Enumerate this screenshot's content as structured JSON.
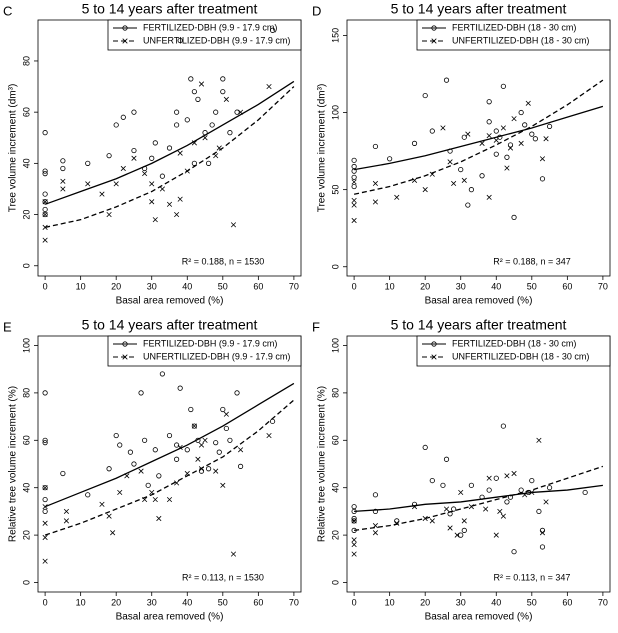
{
  "chart_data": [
    {
      "type": "scatter",
      "panel_label": "C",
      "title": "5 to 14 years after treatment",
      "x_label": "Basal area removed (%)",
      "y_label": "Tree volume increment (dm³)",
      "annotation": "R² = 0.188, n = 1530",
      "xlim": [
        -2,
        72
      ],
      "xticks": [
        0,
        10,
        20,
        30,
        40,
        50,
        60,
        70
      ],
      "ylim": [
        -4,
        96
      ],
      "yticks": [
        0,
        20,
        40,
        60,
        80
      ],
      "series": [
        {
          "name": "FERTILIZED-DBH (9.9 - 17.9 cm)",
          "marker": "circle",
          "line_style": "solid",
          "color": "#000000",
          "x": [
            0,
            0,
            0,
            0,
            0,
            0,
            0,
            5,
            5,
            12,
            18,
            20,
            22,
            25,
            25,
            28,
            30,
            31,
            33,
            35,
            37,
            37,
            38,
            40,
            41,
            42,
            43,
            45,
            46,
            47,
            48,
            50,
            50,
            52,
            54,
            64,
            42
          ],
          "values": [
            52,
            37,
            36,
            28,
            25,
            22,
            20,
            41,
            38,
            40,
            43,
            55,
            58,
            60,
            45,
            38,
            42,
            48,
            35,
            46,
            55,
            60,
            88,
            57,
            73,
            68,
            65,
            52,
            40,
            55,
            60,
            73,
            68,
            52,
            60,
            92,
            40
          ],
          "fit_x": [
            0,
            10,
            20,
            30,
            40,
            50,
            60,
            70
          ],
          "fit_values": [
            24,
            29,
            34,
            40,
            47,
            55,
            63,
            72
          ]
        },
        {
          "name": "UNFERTILIZED-DBH (9.9 - 17.9 cm)",
          "marker": "x",
          "line_style": "dashed",
          "color": "#000000",
          "x": [
            0,
            0,
            0,
            0,
            5,
            5,
            12,
            16,
            18,
            20,
            22,
            25,
            28,
            30,
            30,
            31,
            33,
            35,
            37,
            38,
            38,
            40,
            42,
            44,
            45,
            48,
            49,
            51,
            53,
            55,
            63
          ],
          "values": [
            25,
            20,
            15,
            10,
            33,
            30,
            32,
            28,
            20,
            32,
            38,
            42,
            36,
            32,
            25,
            18,
            30,
            24,
            20,
            26,
            44,
            37,
            48,
            71,
            50,
            43,
            46,
            65,
            16,
            60,
            70
          ],
          "fit_x": [
            0,
            10,
            20,
            30,
            40,
            50,
            60,
            70
          ],
          "fit_values": [
            15,
            18,
            23,
            29,
            37,
            46,
            57,
            70
          ]
        }
      ]
    },
    {
      "type": "scatter",
      "panel_label": "D",
      "title": "5 to 14 years after treatment",
      "x_label": "Basal area removed (%)",
      "y_label": "Tree volume increment (dm³)",
      "annotation": "R² = 0.188, n = 347",
      "xlim": [
        -2,
        72
      ],
      "xticks": [
        0,
        10,
        20,
        30,
        40,
        50,
        60,
        70
      ],
      "ylim": [
        -6,
        160
      ],
      "yticks": [
        0,
        50,
        100,
        150
      ],
      "series": [
        {
          "name": "FERTILIZED-DBH (18 - 30 cm)",
          "marker": "circle",
          "line_style": "solid",
          "color": "#000000",
          "x": [
            0,
            0,
            0,
            0,
            0,
            6,
            10,
            17,
            20,
            22,
            26,
            27,
            30,
            31,
            32,
            33,
            36,
            38,
            38,
            40,
            41,
            42,
            43,
            44,
            45,
            47,
            48,
            50,
            51,
            53,
            55,
            40
          ],
          "values": [
            69,
            65,
            62,
            58,
            52,
            78,
            70,
            80,
            111,
            88,
            121,
            75,
            63,
            84,
            40,
            50,
            59,
            107,
            94,
            88,
            84,
            117,
            71,
            79,
            32,
            100,
            92,
            86,
            83,
            57,
            91,
            73
          ],
          "fit_x": [
            0,
            10,
            20,
            30,
            40,
            50,
            60,
            70
          ],
          "fit_values": [
            63,
            67,
            72,
            78,
            84,
            90,
            97,
            104
          ]
        },
        {
          "name": "UNFERTILIZED-DBH (18 - 30 cm)",
          "marker": "x",
          "line_style": "dashed",
          "color": "#000000",
          "x": [
            0,
            0,
            0,
            0,
            6,
            6,
            12,
            17,
            20,
            22,
            25,
            27,
            28,
            31,
            32,
            36,
            38,
            38,
            40,
            42,
            43,
            44,
            45,
            47,
            49,
            53,
            54
          ],
          "values": [
            55,
            43,
            40,
            30,
            54,
            42,
            45,
            56,
            50,
            60,
            90,
            68,
            54,
            56,
            86,
            80,
            85,
            45,
            82,
            90,
            64,
            77,
            96,
            80,
            106,
            70,
            83
          ],
          "fit_x": [
            0,
            10,
            20,
            30,
            40,
            50,
            60,
            70
          ],
          "fit_values": [
            47,
            52,
            59,
            68,
            79,
            91,
            105,
            121
          ]
        }
      ]
    },
    {
      "type": "scatter",
      "panel_label": "E",
      "title": "5 to 14 years after treatment",
      "x_label": "Basal area removed (%)",
      "y_label": "Relative tree volume increment (%)",
      "annotation": "R² = 0.113, n = 1530",
      "xlim": [
        -2,
        72
      ],
      "xticks": [
        0,
        10,
        20,
        30,
        40,
        50,
        60,
        70
      ],
      "ylim": [
        -4,
        104
      ],
      "yticks": [
        0,
        20,
        40,
        60,
        80,
        100
      ],
      "series": [
        {
          "name": "FERTILIZED-DBH (9.9 - 17.9 cm)",
          "marker": "circle",
          "line_style": "solid",
          "color": "#000000",
          "x": [
            0,
            0,
            0,
            0,
            0,
            0,
            5,
            12,
            18,
            20,
            21,
            24,
            25,
            27,
            28,
            29,
            31,
            32,
            33,
            35,
            37,
            37,
            38,
            40,
            41,
            42,
            43,
            44,
            46,
            48,
            49,
            50,
            51,
            54,
            55,
            64,
            52
          ],
          "values": [
            80,
            60,
            59,
            40,
            35,
            30,
            46,
            37,
            48,
            62,
            58,
            55,
            50,
            80,
            60,
            41,
            56,
            45,
            88,
            62,
            52,
            58,
            82,
            56,
            73,
            66,
            60,
            47,
            48,
            59,
            55,
            73,
            65,
            80,
            49,
            68,
            60
          ],
          "fit_x": [
            0,
            10,
            20,
            30,
            40,
            50,
            60,
            70
          ],
          "fit_values": [
            32,
            38,
            44,
            51,
            58,
            66,
            75,
            84
          ]
        },
        {
          "name": "UNFERTILIZED-DBH (9.9 - 17.9 cm)",
          "marker": "x",
          "line_style": "dashed",
          "color": "#000000",
          "x": [
            0,
            0,
            0,
            0,
            0,
            6,
            6,
            16,
            18,
            19,
            21,
            23,
            27,
            28,
            30,
            31,
            32,
            35,
            37,
            38,
            40,
            42,
            43,
            44,
            45,
            48,
            50,
            51,
            53,
            55,
            63,
            44
          ],
          "values": [
            40,
            32,
            25,
            19,
            9,
            30,
            26,
            33,
            28,
            21,
            38,
            45,
            47,
            35,
            38,
            35,
            27,
            35,
            42,
            57,
            46,
            66,
            52,
            58,
            60,
            47,
            41,
            71,
            12,
            56,
            62,
            48
          ],
          "fit_x": [
            0,
            10,
            20,
            30,
            40,
            50,
            60,
            70
          ],
          "fit_values": [
            20,
            25,
            31,
            37,
            45,
            53,
            64,
            77
          ]
        }
      ]
    },
    {
      "type": "scatter",
      "panel_label": "F",
      "title": "5 to 14 years after treatment",
      "x_label": "Basal area removed (%)",
      "y_label": "Relative tree volume increment (%)",
      "annotation": "R² = 0.113, n = 347",
      "xlim": [
        -2,
        72
      ],
      "xticks": [
        0,
        10,
        20,
        30,
        40,
        50,
        60,
        70
      ],
      "ylim": [
        -4,
        104
      ],
      "yticks": [
        0,
        20,
        40,
        60,
        80,
        100
      ],
      "series": [
        {
          "name": "FERTILIZED-DBH (18 - 30 cm)",
          "marker": "circle",
          "line_style": "solid",
          "color": "#000000",
          "x": [
            0,
            0,
            0,
            0,
            0,
            6,
            6,
            12,
            17,
            20,
            22,
            25,
            26,
            27,
            28,
            30,
            31,
            33,
            36,
            38,
            40,
            42,
            43,
            44,
            45,
            47,
            49,
            50,
            53,
            53,
            55,
            65,
            52
          ],
          "values": [
            32,
            30,
            27,
            26,
            22,
            37,
            30,
            26,
            33,
            57,
            43,
            41,
            52,
            29,
            31,
            20,
            22,
            41,
            36,
            39,
            44,
            66,
            34,
            36,
            13,
            39,
            38,
            43,
            22,
            15,
            40,
            38,
            30
          ],
          "fit_x": [
            0,
            10,
            20,
            30,
            40,
            50,
            60,
            70
          ],
          "fit_values": [
            30,
            31,
            33,
            34,
            36,
            38,
            39,
            41
          ]
        },
        {
          "name": "UNFERTILIZED-DBH (18 - 30 cm)",
          "marker": "x",
          "line_style": "dashed",
          "color": "#000000",
          "x": [
            0,
            0,
            0,
            0,
            6,
            6,
            12,
            17,
            20,
            22,
            26,
            27,
            29,
            30,
            31,
            33,
            37,
            38,
            40,
            42,
            43,
            45,
            48,
            50,
            52,
            53,
            54,
            41
          ],
          "values": [
            26,
            18,
            16,
            12,
            24,
            21,
            25,
            32,
            27,
            26,
            31,
            23,
            20,
            38,
            26,
            32,
            31,
            44,
            20,
            28,
            45,
            46,
            37,
            38,
            60,
            21,
            34,
            30
          ],
          "fit_x": [
            0,
            10,
            20,
            30,
            40,
            50,
            60,
            70
          ],
          "fit_values": [
            22,
            24,
            27,
            31,
            35,
            39,
            44,
            49
          ]
        }
      ]
    }
  ]
}
